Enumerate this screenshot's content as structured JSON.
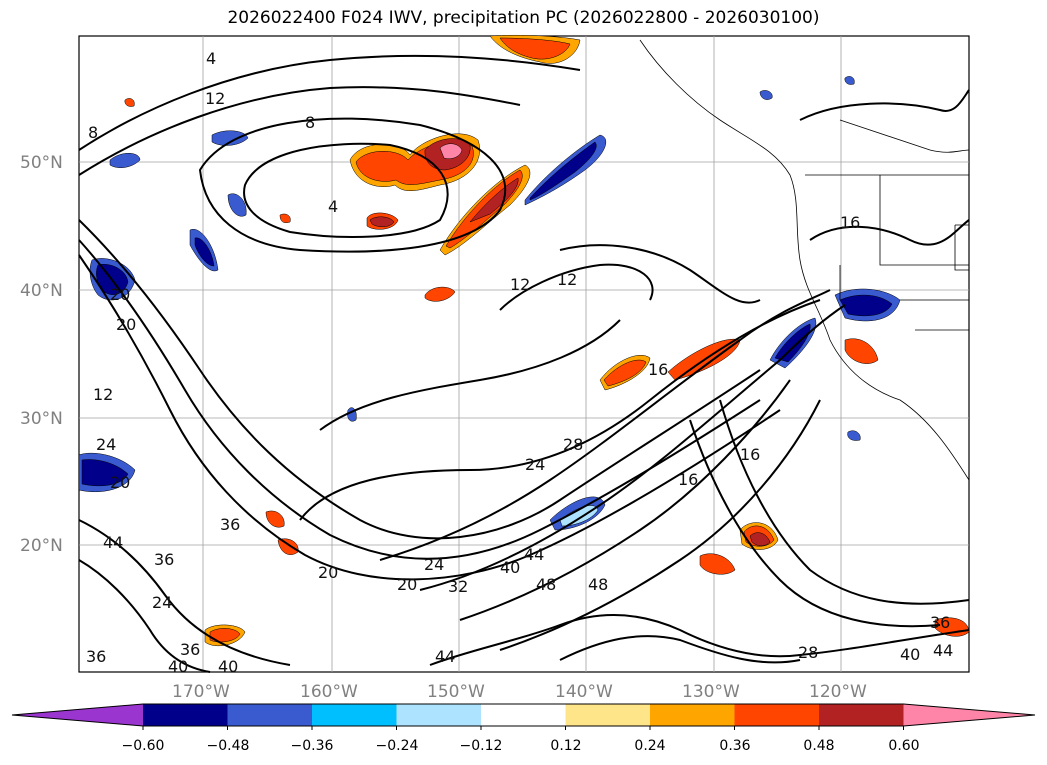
{
  "title": "2026022400 F024 IWV, precipitation PC (2026022800 - 2026030100)",
  "map": {
    "lat_labels": [
      "50°N",
      "40°N",
      "30°N",
      "20°N"
    ],
    "lon_labels": [
      "170°W",
      "160°W",
      "150°W",
      "140°W",
      "130°W",
      "120°W"
    ],
    "contour_labels": [
      "4",
      "12",
      "8",
      "8",
      "4",
      "12",
      "12",
      "16",
      "20",
      "20",
      "12",
      "24",
      "20",
      "16",
      "16",
      "28",
      "24",
      "16",
      "36",
      "44",
      "36",
      "24",
      "20",
      "20",
      "24",
      "32",
      "40",
      "44",
      "48",
      "48",
      "36",
      "40",
      "36",
      "40",
      "44",
      "28",
      "44",
      "40",
      "36"
    ]
  },
  "colorbar": {
    "ticks": [
      "−0.60",
      "−0.48",
      "−0.36",
      "−0.24",
      "−0.12",
      "0.12",
      "0.24",
      "0.36",
      "0.48",
      "0.60"
    ],
    "colors": [
      "#9b35d0",
      "#00008b",
      "#3a5bd0",
      "#00bfff",
      "#aee3ff",
      "#ffffff",
      "#ffe58a",
      "#ffa500",
      "#ff4500",
      "#b22222",
      "#ff85a8"
    ]
  }
}
